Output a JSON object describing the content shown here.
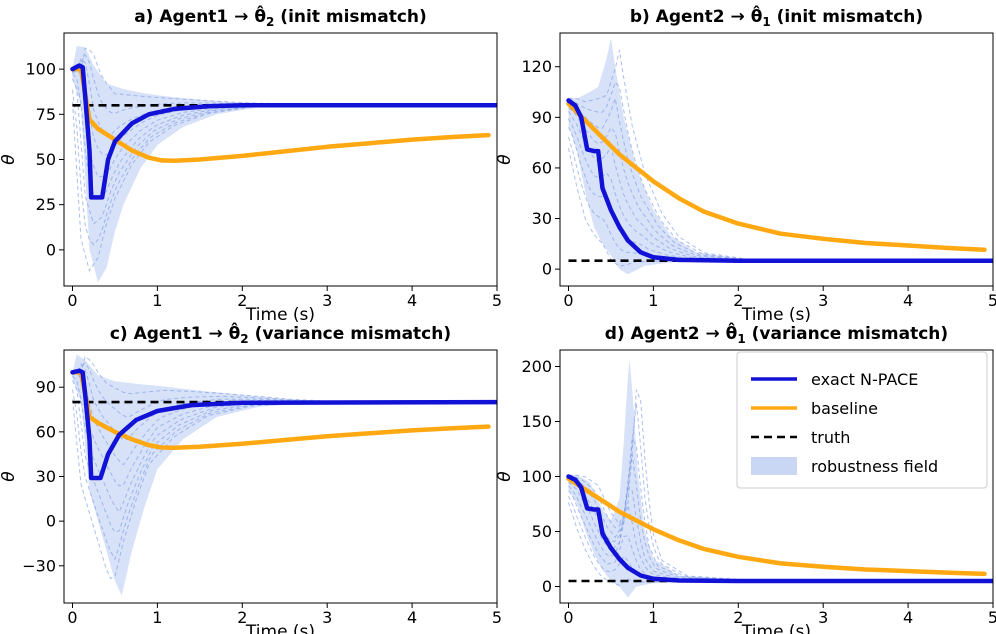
{
  "figure": {
    "legend": {
      "entries": [
        {
          "key": "exact",
          "label": "exact N-PACE"
        },
        {
          "key": "baseline",
          "label": "baseline"
        },
        {
          "key": "truth",
          "label": "truth"
        },
        {
          "key": "field",
          "label": "robustness field"
        }
      ],
      "location": "top-right of panel d"
    }
  },
  "colors": {
    "exact": "#1212d6",
    "baseline": "#ffa812",
    "truth": "#000000",
    "field": "#c9d7f5",
    "field_lines": "#7e9ce3"
  },
  "chart_data": [
    {
      "id": "a",
      "type": "line",
      "title_prefix": "a) Agent1 → ",
      "title_symbol": "θ̂",
      "title_subscript": "2",
      "title_suffix": " (init mismatch)",
      "xlabel": "Time (s)",
      "ylabel": "θ",
      "xlim": [
        -0.1,
        5.0
      ],
      "ylim": [
        -20,
        120
      ],
      "xticks": [
        0,
        1,
        2,
        3,
        4,
        5
      ],
      "yticks": [
        0,
        25,
        50,
        75,
        100
      ],
      "truth": 80,
      "series": [
        {
          "name": "exact N-PACE",
          "points": [
            [
              0,
              100
            ],
            [
              0.08,
              102
            ],
            [
              0.12,
              101
            ],
            [
              0.15,
              85
            ],
            [
              0.2,
              55
            ],
            [
              0.22,
              29
            ],
            [
              0.35,
              29
            ],
            [
              0.42,
              50
            ],
            [
              0.5,
              60
            ],
            [
              0.7,
              70
            ],
            [
              0.9,
              75
            ],
            [
              1.2,
              78
            ],
            [
              1.6,
              79.5
            ],
            [
              2,
              80
            ],
            [
              5,
              80
            ]
          ]
        },
        {
          "name": "baseline",
          "points": [
            [
              0,
              100
            ],
            [
              0.1,
              100
            ],
            [
              0.2,
              72
            ],
            [
              0.3,
              67
            ],
            [
              0.5,
              61
            ],
            [
              0.7,
              55
            ],
            [
              0.9,
              51
            ],
            [
              1.05,
              49.5
            ],
            [
              1.2,
              49.3
            ],
            [
              1.5,
              50
            ],
            [
              2,
              52
            ],
            [
              2.5,
              54.5
            ],
            [
              3,
              57
            ],
            [
              3.5,
              59
            ],
            [
              4,
              61
            ],
            [
              4.5,
              62.5
            ],
            [
              4.9,
              63.5
            ]
          ]
        }
      ],
      "robustness_band": {
        "lower": [
          [
            0,
            95
          ],
          [
            0.1,
            80
          ],
          [
            0.2,
            0
          ],
          [
            0.3,
            -18
          ],
          [
            0.4,
            -10
          ],
          [
            0.5,
            10
          ],
          [
            0.6,
            25
          ],
          [
            0.8,
            45
          ],
          [
            1.0,
            58
          ],
          [
            1.3,
            68
          ],
          [
            1.7,
            75
          ],
          [
            2.2,
            79
          ],
          [
            3,
            80
          ],
          [
            5,
            80
          ]
        ],
        "upper": [
          [
            0,
            100
          ],
          [
            0.05,
            113
          ],
          [
            0.15,
            112
          ],
          [
            0.25,
            102
          ],
          [
            0.4,
            92
          ],
          [
            0.6,
            89
          ],
          [
            0.8,
            87
          ],
          [
            1.0,
            85.5
          ],
          [
            1.3,
            84
          ],
          [
            1.8,
            82
          ],
          [
            2.5,
            80.5
          ],
          [
            3,
            80
          ],
          [
            5,
            80
          ]
        ]
      }
    },
    {
      "id": "b",
      "type": "line",
      "title_prefix": "b) Agent2 → ",
      "title_symbol": "θ̂",
      "title_subscript": "1",
      "title_suffix": " (init mismatch)",
      "xlabel": "Time (s)",
      "ylabel": "θ",
      "xlim": [
        -0.1,
        5.0
      ],
      "ylim": [
        -10,
        140
      ],
      "xticks": [
        0,
        1,
        2,
        3,
        4,
        5
      ],
      "yticks": [
        0,
        30,
        60,
        90,
        120
      ],
      "truth": 5,
      "series": [
        {
          "name": "exact N-PACE",
          "points": [
            [
              0,
              100
            ],
            [
              0.08,
              97
            ],
            [
              0.15,
              90
            ],
            [
              0.22,
              71
            ],
            [
              0.3,
              70
            ],
            [
              0.35,
              70
            ],
            [
              0.4,
              48
            ],
            [
              0.5,
              35
            ],
            [
              0.6,
              25
            ],
            [
              0.7,
              17
            ],
            [
              0.85,
              10
            ],
            [
              1.0,
              7
            ],
            [
              1.3,
              5.5
            ],
            [
              2,
              5
            ],
            [
              5,
              5
            ]
          ]
        },
        {
          "name": "baseline",
          "points": [
            [
              0,
              98
            ],
            [
              0.2,
              88
            ],
            [
              0.4,
              78
            ],
            [
              0.6,
              68
            ],
            [
              0.8,
              60
            ],
            [
              1.0,
              52
            ],
            [
              1.3,
              42
            ],
            [
              1.6,
              34
            ],
            [
              2,
              27
            ],
            [
              2.5,
              21
            ],
            [
              3,
              18
            ],
            [
              3.5,
              15.5
            ],
            [
              4,
              14
            ],
            [
              4.5,
              12.5
            ],
            [
              4.9,
              11.5
            ]
          ]
        }
      ],
      "robustness_band": {
        "lower": [
          [
            0,
            85
          ],
          [
            0.1,
            70
          ],
          [
            0.2,
            45
          ],
          [
            0.3,
            25
          ],
          [
            0.4,
            15
          ],
          [
            0.5,
            8
          ],
          [
            0.6,
            0
          ],
          [
            0.7,
            -3
          ],
          [
            0.9,
            2
          ],
          [
            1.2,
            4
          ],
          [
            2,
            5
          ],
          [
            5,
            5
          ]
        ],
        "upper": [
          [
            0,
            102
          ],
          [
            0.1,
            101
          ],
          [
            0.25,
            105
          ],
          [
            0.35,
            108
          ],
          [
            0.45,
            125
          ],
          [
            0.5,
            137
          ],
          [
            0.55,
            120
          ],
          [
            0.65,
            90
          ],
          [
            0.8,
            60
          ],
          [
            1.0,
            35
          ],
          [
            1.2,
            20
          ],
          [
            1.5,
            10
          ],
          [
            2,
            6
          ],
          [
            5,
            5
          ]
        ]
      }
    },
    {
      "id": "c",
      "type": "line",
      "title_prefix": "c) Agent1 → ",
      "title_symbol": "θ̂",
      "title_subscript": "2",
      "title_suffix": " (variance mismatch)",
      "xlabel": "Time (s)",
      "ylabel": "θ",
      "xlim": [
        -0.1,
        5.0
      ],
      "ylim": [
        -55,
        115
      ],
      "xticks": [
        0,
        1,
        2,
        3,
        4,
        5
      ],
      "yticks": [
        -30,
        0,
        30,
        60,
        90
      ],
      "truth": 80,
      "series": [
        {
          "name": "exact N-PACE",
          "points": [
            [
              0,
              100
            ],
            [
              0.08,
              101
            ],
            [
              0.12,
              100
            ],
            [
              0.15,
              85
            ],
            [
              0.2,
              55
            ],
            [
              0.22,
              29
            ],
            [
              0.33,
              29
            ],
            [
              0.42,
              45
            ],
            [
              0.55,
              58
            ],
            [
              0.75,
              68
            ],
            [
              1.0,
              74
            ],
            [
              1.4,
              78
            ],
            [
              2,
              79.5
            ],
            [
              5,
              80
            ]
          ]
        },
        {
          "name": "baseline",
          "points": [
            [
              0,
              100
            ],
            [
              0.1,
              100
            ],
            [
              0.2,
              70
            ],
            [
              0.3,
              66
            ],
            [
              0.5,
              60
            ],
            [
              0.7,
              55
            ],
            [
              0.9,
              51
            ],
            [
              1.05,
              49.5
            ],
            [
              1.2,
              49.3
            ],
            [
              1.5,
              50
            ],
            [
              2,
              52
            ],
            [
              2.5,
              54.5
            ],
            [
              3,
              57
            ],
            [
              3.5,
              59
            ],
            [
              4,
              61
            ],
            [
              4.5,
              62.5
            ],
            [
              4.9,
              63.5
            ]
          ]
        }
      ],
      "robustness_band": {
        "lower": [
          [
            0,
            96
          ],
          [
            0.1,
            80
          ],
          [
            0.2,
            20
          ],
          [
            0.3,
            0
          ],
          [
            0.4,
            -20
          ],
          [
            0.5,
            -40
          ],
          [
            0.58,
            -50
          ],
          [
            0.7,
            -20
          ],
          [
            0.85,
            10
          ],
          [
            1.0,
            35
          ],
          [
            1.3,
            55
          ],
          [
            1.7,
            70
          ],
          [
            2.2,
            77
          ],
          [
            3,
            80
          ],
          [
            5,
            80
          ]
        ],
        "upper": [
          [
            0,
            100
          ],
          [
            0.05,
            112
          ],
          [
            0.15,
            108
          ],
          [
            0.3,
            98
          ],
          [
            0.5,
            94
          ],
          [
            0.8,
            92
          ],
          [
            1.0,
            91
          ],
          [
            1.3,
            89
          ],
          [
            1.8,
            86
          ],
          [
            2.5,
            82
          ],
          [
            3,
            80.5
          ],
          [
            5,
            80
          ]
        ]
      }
    },
    {
      "id": "d",
      "type": "line",
      "title_prefix": "d) Agent2 → ",
      "title_symbol": "θ̂",
      "title_subscript": "1",
      "title_suffix": " (variance mismatch)",
      "xlabel": "Time (s)",
      "ylabel": "θ",
      "xlim": [
        -0.1,
        5.0
      ],
      "ylim": [
        -15,
        215
      ],
      "xticks": [
        0,
        1,
        2,
        3,
        4,
        5
      ],
      "yticks": [
        0,
        50,
        100,
        150,
        200
      ],
      "truth": 5,
      "series": [
        {
          "name": "exact N-PACE",
          "points": [
            [
              0,
              100
            ],
            [
              0.08,
              97
            ],
            [
              0.15,
              90
            ],
            [
              0.22,
              71
            ],
            [
              0.3,
              70
            ],
            [
              0.35,
              70
            ],
            [
              0.4,
              48
            ],
            [
              0.5,
              35
            ],
            [
              0.6,
              25
            ],
            [
              0.7,
              17
            ],
            [
              0.85,
              10
            ],
            [
              1.0,
              7
            ],
            [
              1.3,
              5.5
            ],
            [
              2,
              5
            ],
            [
              5,
              5
            ]
          ]
        },
        {
          "name": "baseline",
          "points": [
            [
              0,
              98
            ],
            [
              0.2,
              88
            ],
            [
              0.4,
              78
            ],
            [
              0.6,
              68
            ],
            [
              0.8,
              60
            ],
            [
              1.0,
              52
            ],
            [
              1.3,
              42
            ],
            [
              1.6,
              34
            ],
            [
              2,
              27
            ],
            [
              2.5,
              21
            ],
            [
              3,
              18
            ],
            [
              3.5,
              15.5
            ],
            [
              4,
              14
            ],
            [
              4.5,
              12.5
            ],
            [
              4.9,
              11.5
            ]
          ]
        }
      ],
      "robustness_band": {
        "lower": [
          [
            0,
            88
          ],
          [
            0.1,
            75
          ],
          [
            0.2,
            50
          ],
          [
            0.3,
            30
          ],
          [
            0.4,
            15
          ],
          [
            0.5,
            5
          ],
          [
            0.6,
            0
          ],
          [
            0.7,
            -10
          ],
          [
            0.8,
            0
          ],
          [
            1.0,
            3
          ],
          [
            1.3,
            4
          ],
          [
            2,
            5
          ],
          [
            5,
            5
          ]
        ],
        "upper": [
          [
            0,
            102
          ],
          [
            0.1,
            101
          ],
          [
            0.25,
            95
          ],
          [
            0.4,
            70
          ],
          [
            0.5,
            60
          ],
          [
            0.6,
            80
          ],
          [
            0.65,
            130
          ],
          [
            0.7,
            190
          ],
          [
            0.72,
            206
          ],
          [
            0.76,
            170
          ],
          [
            0.82,
            100
          ],
          [
            0.9,
            50
          ],
          [
            1.0,
            25
          ],
          [
            1.3,
            10
          ],
          [
            2,
            6
          ],
          [
            5,
            5
          ]
        ]
      }
    }
  ]
}
